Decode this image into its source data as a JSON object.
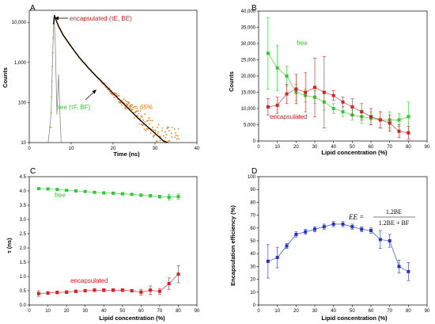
{
  "figure": {
    "panel_letters": [
      "A",
      "B",
      "C",
      "D"
    ]
  },
  "chart_data": [
    {
      "panel": "A",
      "type": "scatter",
      "xlabel": "Time (ns)",
      "ylabel": "Counts",
      "xlim": [
        0,
        40
      ],
      "ylim": [
        10,
        20000
      ],
      "yscale": "log",
      "xticks": [
        0,
        10,
        20,
        30,
        40
      ],
      "xtick_labels": [
        "0",
        "10",
        "20",
        "30",
        "40"
      ],
      "yticks": [
        10,
        100,
        1000,
        10000
      ],
      "ytick_labels": [
        "10",
        "100",
        "1,000",
        "10,000"
      ],
      "annotations": [
        {
          "text": "encapsulated (τE, BE)",
          "color": "#d62020"
        },
        {
          "text": "free (τF, BF)",
          "color": "#2ecc2e"
        },
        {
          "text": "EE = 65%",
          "color": "#e8801c"
        }
      ],
      "series": [
        {
          "name": "instrument response",
          "color": "#888888",
          "x": [
            4.5,
            5.2,
            5.6,
            5.9,
            6.2,
            6.6,
            7.0,
            7.3,
            7.6
          ],
          "y": [
            10,
            50,
            2000,
            14000,
            3000,
            50,
            500,
            60,
            10
          ]
        },
        {
          "name": "decay",
          "color": "#e8801c",
          "x": [
            5.0,
            5.5,
            5.8,
            6.0,
            6.3,
            7.0,
            8,
            10,
            12,
            14,
            16,
            18,
            20,
            22,
            24,
            26,
            28,
            30,
            32,
            34,
            36
          ],
          "y": [
            10,
            800,
            9000,
            15000,
            12000,
            8000,
            5000,
            2500,
            1300,
            750,
            450,
            280,
            170,
            110,
            70,
            45,
            30,
            20,
            14,
            12,
            10
          ]
        },
        {
          "name": "fit",
          "color": "#000000",
          "x": [
            5.8,
            6.0,
            6.3,
            7.0,
            8,
            10,
            12,
            14,
            16,
            18,
            20,
            22,
            24,
            26,
            28,
            30,
            32,
            33
          ],
          "y": [
            9000,
            15000,
            12000,
            8000,
            5000,
            2500,
            1300,
            750,
            450,
            280,
            170,
            105,
            65,
            40,
            26,
            17,
            11,
            10
          ]
        }
      ]
    },
    {
      "panel": "B",
      "type": "line",
      "xlabel": "Lipid concentration (%)",
      "ylabel": "Counts",
      "xlim": [
        0,
        90
      ],
      "ylim": [
        0,
        40000
      ],
      "xticks": [
        0,
        10,
        20,
        30,
        40,
        50,
        60,
        70,
        80,
        90
      ],
      "xtick_labels": [
        "0",
        "10",
        "20",
        "30",
        "40",
        "50",
        "60",
        "70",
        "80",
        "90"
      ],
      "yticks": [
        0,
        5000,
        10000,
        15000,
        20000,
        25000,
        30000,
        35000,
        40000
      ],
      "ytick_labels": [
        "0",
        "5,000",
        "10,000",
        "15,000",
        "20,000",
        "25,000",
        "30,000",
        "35,000",
        "40,000"
      ],
      "series": [
        {
          "name": "free",
          "color": "#2ecc2e",
          "x": [
            5,
            10,
            15,
            20,
            25,
            30,
            35,
            40,
            45,
            50,
            55,
            60,
            65,
            70,
            75,
            80
          ],
          "y": [
            27000,
            22500,
            20000,
            15000,
            14000,
            13500,
            12000,
            10000,
            9000,
            8000,
            7500,
            7000,
            6500,
            6500,
            6500,
            7500
          ],
          "err": [
            11000,
            7000,
            3000,
            2500,
            2000,
            2000,
            2500,
            1500,
            1500,
            1500,
            2000,
            2000,
            2500,
            2500,
            2000,
            4500
          ]
        },
        {
          "name": "encapsulated",
          "color": "#d62020",
          "x": [
            5,
            10,
            15,
            20,
            25,
            30,
            35,
            40,
            45,
            50,
            55,
            60,
            65,
            70,
            75,
            80
          ],
          "y": [
            10500,
            11000,
            14500,
            16000,
            15000,
            16500,
            15000,
            14000,
            12000,
            10500,
            9000,
            7500,
            6500,
            5500,
            3000,
            2500
          ],
          "err": [
            2500,
            2500,
            3000,
            4500,
            6000,
            9000,
            11000,
            1500,
            1500,
            2500,
            2500,
            2500,
            2500,
            2500,
            2000,
            2000
          ]
        }
      ]
    },
    {
      "panel": "C",
      "type": "line",
      "xlabel": "Lipid concentration (%)",
      "ylabel": "τ (ns)",
      "xlim": [
        0,
        90
      ],
      "ylim": [
        0,
        4.5
      ],
      "xticks": [
        0,
        10,
        20,
        30,
        40,
        50,
        60,
        70,
        80,
        90
      ],
      "xtick_labels": [
        "0",
        "10",
        "20",
        "30",
        "40",
        "50",
        "60",
        "70",
        "80",
        "90"
      ],
      "yticks": [
        0,
        0.5,
        1,
        1.5,
        2,
        2.5,
        3,
        3.5,
        4,
        4.5
      ],
      "ytick_labels": [
        "0.0",
        "0.5",
        "1.0",
        "1.5",
        "2.0",
        "2.5",
        "3.0",
        "3.5",
        "4.0",
        "4.5"
      ],
      "series": [
        {
          "name": "free",
          "color": "#2ecc2e",
          "x": [
            5,
            10,
            15,
            20,
            25,
            30,
            35,
            40,
            45,
            50,
            55,
            60,
            65,
            70,
            75,
            80
          ],
          "y": [
            4.08,
            4.07,
            4.05,
            4.02,
            4.0,
            3.98,
            3.95,
            3.93,
            3.92,
            3.9,
            3.88,
            3.85,
            3.83,
            3.8,
            3.78,
            3.8
          ],
          "err": [
            0.03,
            0.03,
            0.03,
            0.03,
            0.03,
            0.03,
            0.03,
            0.03,
            0.03,
            0.03,
            0.03,
            0.05,
            0.05,
            0.05,
            0.1,
            0.1
          ]
        },
        {
          "name": "encapsulated",
          "color": "#d62020",
          "x": [
            5,
            10,
            15,
            20,
            25,
            30,
            35,
            40,
            45,
            50,
            55,
            60,
            65,
            70,
            75,
            80
          ],
          "y": [
            0.4,
            0.42,
            0.44,
            0.45,
            0.48,
            0.5,
            0.52,
            0.52,
            0.52,
            0.52,
            0.5,
            0.45,
            0.52,
            0.48,
            0.75,
            1.08
          ],
          "err": [
            0.1,
            0.05,
            0.05,
            0.05,
            0.05,
            0.05,
            0.05,
            0.05,
            0.05,
            0.05,
            0.05,
            0.1,
            0.15,
            0.1,
            0.2,
            0.3
          ]
        }
      ]
    },
    {
      "panel": "D",
      "type": "line",
      "xlabel": "Lipid concentration (%)",
      "ylabel": "Encapsulation efficiency (%)",
      "xlim": [
        0,
        90
      ],
      "ylim": [
        0,
        100
      ],
      "xticks": [
        0,
        10,
        20,
        30,
        40,
        50,
        60,
        70,
        80,
        90
      ],
      "xtick_labels": [
        "0",
        "10",
        "20",
        "30",
        "40",
        "50",
        "60",
        "70",
        "80",
        "90"
      ],
      "yticks": [
        0,
        10,
        20,
        30,
        40,
        50,
        60,
        70,
        80,
        90,
        100
      ],
      "ytick_labels": [
        "0",
        "10",
        "20",
        "30",
        "40",
        "50",
        "60",
        "70",
        "80",
        "90",
        "100"
      ],
      "formula": {
        "lhs": "EE =",
        "numerator": "1.2BE",
        "denominator": "1.2BE + BF"
      },
      "series": [
        {
          "name": "EE",
          "color": "#2233cc",
          "x": [
            5,
            10,
            15,
            20,
            25,
            30,
            35,
            40,
            45,
            50,
            55,
            60,
            65,
            70,
            75,
            80
          ],
          "y": [
            34,
            37,
            46,
            55,
            57,
            59,
            61,
            63,
            63,
            61,
            59,
            58,
            51,
            50,
            30,
            26
          ],
          "err": [
            13,
            8,
            2,
            2,
            2,
            2,
            2,
            2,
            2,
            2,
            2,
            2,
            7,
            5,
            5,
            7
          ]
        }
      ]
    }
  ]
}
